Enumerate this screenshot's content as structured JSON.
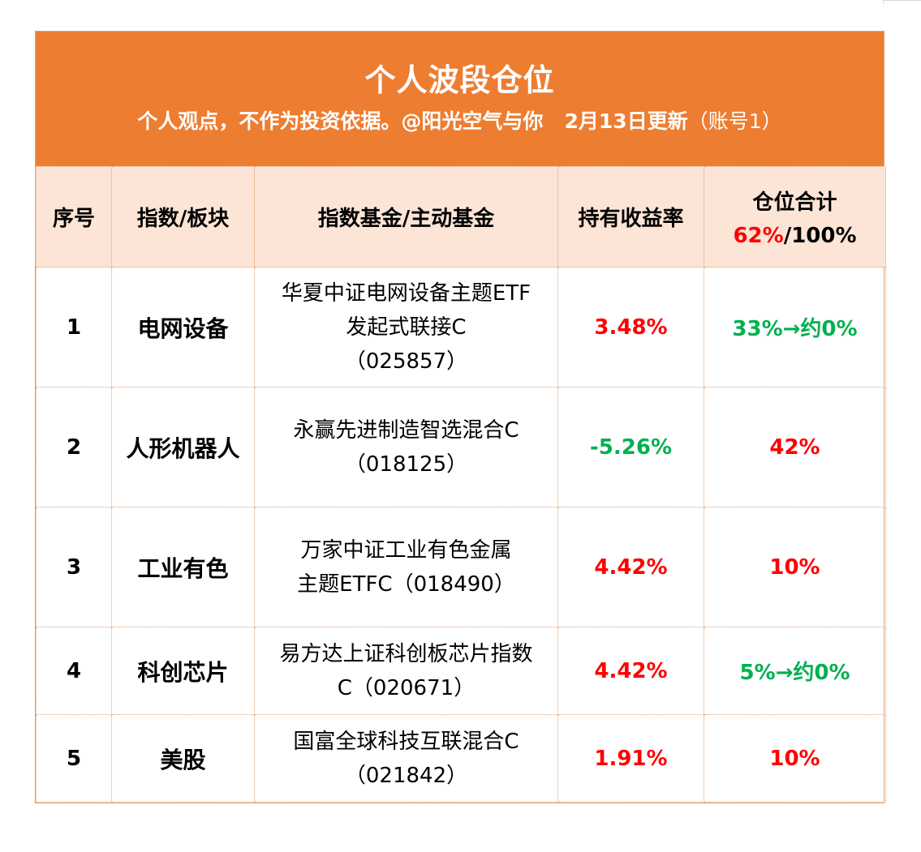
{
  "header": {
    "title": "个人波段仓位",
    "subtitle": "个人观点，不作为投资依据。@阳光空气与你",
    "date": "2月13日更新",
    "account": "（账号1）"
  },
  "columns": {
    "index": "序号",
    "sector": "指数/板块",
    "fund": "指数基金/主动基金",
    "return": "持有收益率",
    "total_label": "仓位合计",
    "total_current": "62%",
    "total_sep": "/",
    "total_max": "100%"
  },
  "rows": [
    {
      "index": "1",
      "sector": "电网设备",
      "fund_lines": [
        "华夏中证电网设备主题ETF",
        "发起式联接C",
        "（025857）"
      ],
      "return": "3.48%",
      "return_sign": "positive",
      "position": "33%→约0%",
      "position_color": "green"
    },
    {
      "index": "2",
      "sector": "人形机器人",
      "fund_lines": [
        "永赢先进制造智选混合C",
        "（018125）"
      ],
      "return": "-5.26%",
      "return_sign": "negative",
      "position": "42%",
      "position_color": "red"
    },
    {
      "index": "3",
      "sector": "工业有色",
      "fund_lines": [
        "万家中证工业有色金属",
        "主题ETFC（018490）"
      ],
      "return": "4.42%",
      "return_sign": "positive",
      "position": "10%",
      "position_color": "red"
    },
    {
      "index": "4",
      "sector": "科创芯片",
      "fund_lines": [
        "易方达上证科创板芯片指数",
        "C（020671）"
      ],
      "return": "4.42%",
      "return_sign": "positive",
      "position": "5%→约0%",
      "position_color": "green"
    },
    {
      "index": "5",
      "sector": "美股",
      "fund_lines": [
        "国富全球科技互联混合C",
        "（021842）"
      ],
      "return": "1.91%",
      "return_sign": "positive",
      "position": "10%",
      "position_color": "red"
    }
  ],
  "colors": {
    "banner": "#ed7d31",
    "header_bg": "#fce4d6",
    "positive": "#ff0000",
    "negative": "#00b050"
  }
}
